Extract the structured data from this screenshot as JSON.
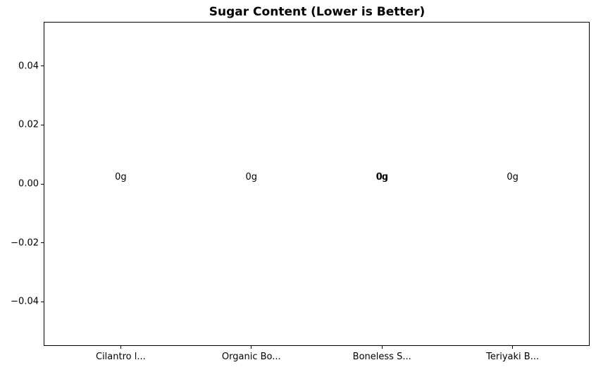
{
  "chart_data": {
    "type": "bar",
    "title": "Sugar Content (Lower is Better)",
    "categories": [
      "Cilantro l...",
      "Organic Bo...",
      "Boneless S...",
      "Teriyaki B..."
    ],
    "values": [
      0,
      0,
      0,
      0
    ],
    "bar_labels": [
      "0g",
      "0g",
      "0g",
      "0g"
    ],
    "bar_label_double_drawn": [
      false,
      false,
      true,
      false
    ],
    "xlabel": "",
    "ylabel": "",
    "yticks": [
      0.04,
      0.02,
      0.0,
      -0.02,
      -0.04
    ],
    "ytick_labels": [
      "0.04",
      "0.02",
      "0.00",
      "−0.02",
      "−0.04"
    ],
    "ylim": [
      -0.055,
      0.055
    ],
    "xlim": [
      -0.59,
      3.59
    ],
    "grid": false,
    "legend": null,
    "colors": {
      "text": "#000000",
      "axis": "#000000",
      "background": "#ffffff"
    }
  }
}
